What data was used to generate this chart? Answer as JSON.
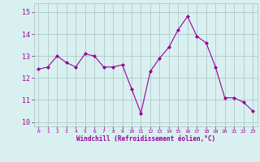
{
  "x": [
    0,
    1,
    2,
    3,
    4,
    5,
    6,
    7,
    8,
    9,
    10,
    11,
    12,
    13,
    14,
    15,
    16,
    17,
    18,
    19,
    20,
    21,
    22,
    23
  ],
  "y": [
    12.4,
    12.5,
    13.0,
    12.7,
    12.5,
    13.1,
    13.0,
    12.5,
    12.5,
    12.6,
    11.5,
    10.4,
    12.3,
    12.9,
    13.4,
    14.2,
    14.8,
    13.9,
    13.6,
    12.5,
    11.1,
    11.1,
    10.9,
    10.5
  ],
  "line_color": "#990099",
  "marker": "D",
  "marker_size": 2.0,
  "background_color": "#d8f0f0",
  "grid_color": "#b0c8c8",
  "ylabel_ticks": [
    10,
    11,
    12,
    13,
    14,
    15
  ],
  "xlabel": "Windchill (Refroidissement éolien,°C)",
  "xlim": [
    -0.5,
    23.5
  ],
  "ylim": [
    9.8,
    15.4
  ],
  "tick_color": "#990099",
  "label_color": "#990099",
  "xtick_labels": [
    "0",
    "1",
    "2",
    "3",
    "4",
    "5",
    "6",
    "7",
    "8",
    "9",
    "10",
    "11",
    "12",
    "13",
    "14",
    "15",
    "16",
    "17",
    "18",
    "19",
    "20",
    "21",
    "22",
    "23"
  ],
  "ytick_fontsize": 6,
  "xtick_fontsize": 4.5,
  "xlabel_fontsize": 5.5
}
